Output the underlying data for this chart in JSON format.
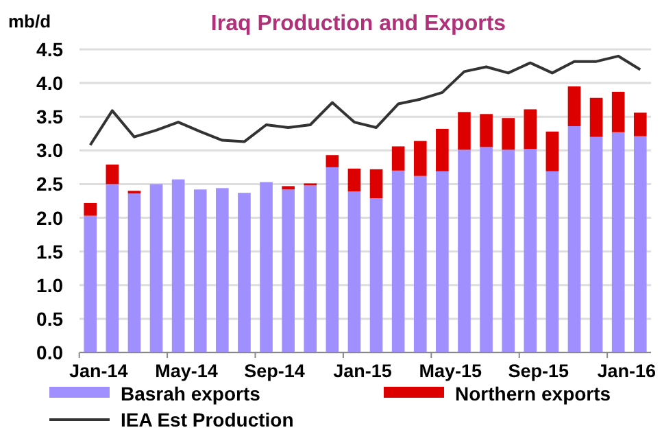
{
  "chart_data": {
    "type": "bar",
    "title": "Iraq Production and Exports",
    "ylabel": "mb/d",
    "stacked": true,
    "categories": [
      "Jan-14",
      null,
      null,
      null,
      "May-14",
      null,
      null,
      null,
      "Sep-14",
      null,
      null,
      null,
      "Jan-15",
      null,
      null,
      null,
      "May-15",
      null,
      null,
      null,
      "Sep-15",
      null,
      null,
      null,
      "Jan-16",
      null
    ],
    "series": [
      {
        "name": "Basrah exports",
        "color": "#9f8fff",
        "values": [
          2.03,
          2.5,
          2.36,
          2.5,
          2.57,
          2.42,
          2.44,
          2.37,
          2.53,
          2.42,
          2.48,
          2.75,
          2.39,
          2.29,
          2.7,
          2.62,
          2.69,
          3.01,
          3.05,
          3.01,
          3.02,
          2.69,
          3.36,
          3.2,
          3.27,
          3.21
        ]
      },
      {
        "name": "Northern exports",
        "color": "#dd0000",
        "values": [
          0.19,
          0.29,
          0.04,
          0,
          0,
          0,
          0,
          0,
          0,
          0.05,
          0.03,
          0.18,
          0.34,
          0.43,
          0.36,
          0.52,
          0.63,
          0.56,
          0.49,
          0.47,
          0.59,
          0.59,
          0.59,
          0.58,
          0.6,
          0.35
        ]
      },
      {
        "name": "IEA Est Production",
        "type": "line",
        "color": "#333333",
        "values": [
          3.08,
          3.59,
          3.2,
          3.3,
          3.42,
          3.28,
          3.15,
          3.13,
          3.38,
          3.34,
          3.38,
          3.71,
          3.42,
          3.34,
          3.69,
          3.76,
          3.86,
          4.17,
          4.24,
          4.15,
          4.3,
          4.15,
          4.32,
          4.32,
          4.4,
          4.2
        ]
      }
    ],
    "ylim": [
      0,
      4.5
    ],
    "yticks": [
      {
        "value": 0,
        "label": "0.0"
      },
      {
        "value": 0.5,
        "label": "0.5"
      },
      {
        "value": 1,
        "label": "1.0"
      },
      {
        "value": 1.5,
        "label": "1.5"
      },
      {
        "value": 2,
        "label": "2.0"
      },
      {
        "value": 2.5,
        "label": "2.5"
      },
      {
        "value": 3,
        "label": "3.0"
      },
      {
        "value": 3.5,
        "label": "3.5"
      },
      {
        "value": 4,
        "label": "4.0"
      },
      {
        "value": 4.5,
        "label": "4.5"
      }
    ],
    "grid": "y",
    "legend": "bottom",
    "marker": "none",
    "line_style": "solid"
  }
}
